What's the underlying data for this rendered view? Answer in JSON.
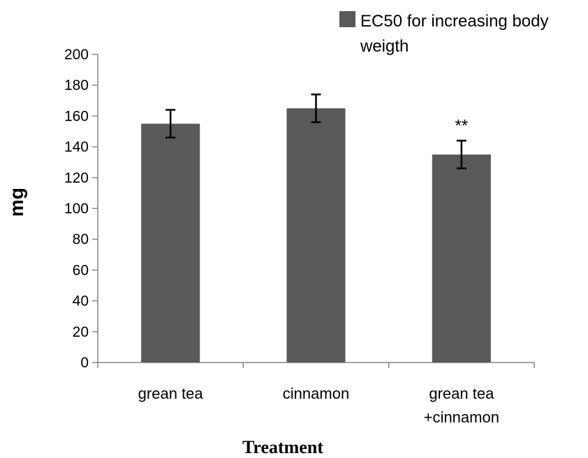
{
  "chart_data": {
    "type": "bar",
    "title": "",
    "xlabel": "Treatment",
    "ylabel": "mg",
    "ylim": [
      0,
      200
    ],
    "yticks": [
      0,
      20,
      40,
      60,
      80,
      100,
      120,
      140,
      160,
      180,
      200
    ],
    "grid": false,
    "legend_position": "top-right",
    "categories": [
      [
        "grean tea"
      ],
      [
        "cinnamon"
      ],
      [
        "grean tea",
        "+cinnamon"
      ]
    ],
    "series": [
      {
        "name": "EC50 for increasing body weigth",
        "legend_lines": [
          "EC50 for increasing body",
          "weigth"
        ],
        "color": "#595959",
        "values": [
          155,
          165,
          135
        ],
        "error": [
          9,
          9,
          9
        ],
        "annotations": [
          "",
          "",
          "**"
        ]
      }
    ]
  }
}
